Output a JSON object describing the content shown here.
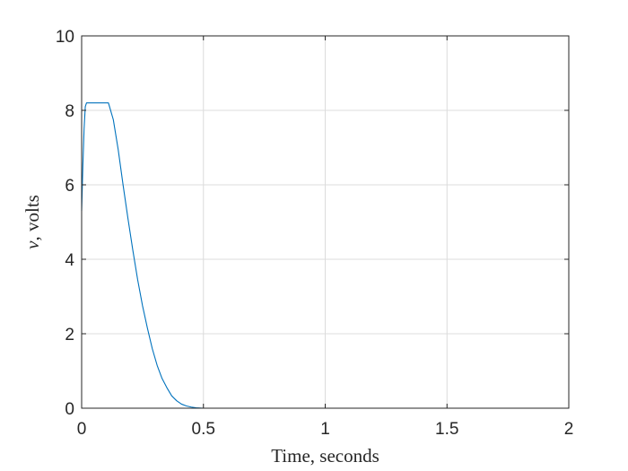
{
  "chart_data": {
    "type": "line",
    "title": "",
    "xlabel": "Time, seconds",
    "ylabel": {
      "symbol": "v",
      "text": ", volts"
    },
    "xlim": [
      0,
      2
    ],
    "ylim": [
      0,
      10
    ],
    "grid": true,
    "xticks": [
      0,
      0.5,
      1,
      1.5,
      2
    ],
    "xtick_labels": [
      "0",
      "0.5",
      "1",
      "1.5",
      "2"
    ],
    "yticks": [
      0,
      2,
      4,
      6,
      8,
      10
    ],
    "ytick_labels": [
      "0",
      "2",
      "4",
      "6",
      "8",
      "10"
    ],
    "series": [
      {
        "color": "#0072BD",
        "x": [
          0,
          0.005,
          0.01,
          0.015,
          0.02,
          0.11,
          0.13,
          0.15,
          0.17,
          0.19,
          0.21,
          0.23,
          0.25,
          0.27,
          0.29,
          0.31,
          0.33,
          0.35,
          0.37,
          0.39,
          0.41,
          0.43,
          0.45,
          0.47,
          0.5,
          0.55,
          0.6,
          1.0,
          1.5,
          2.0
        ],
        "y": [
          5.3,
          6.5,
          7.5,
          8.1,
          8.2,
          8.2,
          7.75,
          6.95,
          6.0,
          5.1,
          4.25,
          3.45,
          2.75,
          2.15,
          1.6,
          1.15,
          0.8,
          0.55,
          0.33,
          0.2,
          0.11,
          0.06,
          0.03,
          0.01,
          0.0,
          0.0,
          0.0,
          0.0,
          0.0,
          0.0
        ]
      }
    ]
  }
}
